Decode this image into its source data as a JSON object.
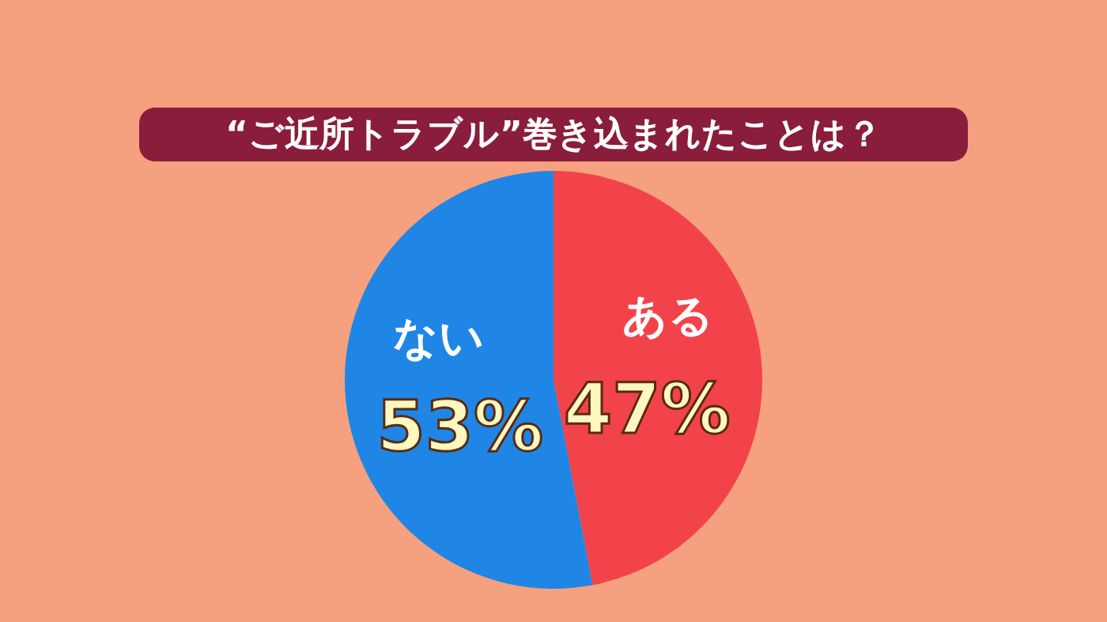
{
  "chart_data": {
    "type": "pie",
    "title": "“ご近所トラブル”巻き込まれたことは？",
    "categories": [
      "ある",
      "ない"
    ],
    "values": [
      47,
      53
    ],
    "colors": [
      "#f2434a",
      "#1f86e6"
    ],
    "value_labels": [
      "47%",
      "53%"
    ]
  }
}
